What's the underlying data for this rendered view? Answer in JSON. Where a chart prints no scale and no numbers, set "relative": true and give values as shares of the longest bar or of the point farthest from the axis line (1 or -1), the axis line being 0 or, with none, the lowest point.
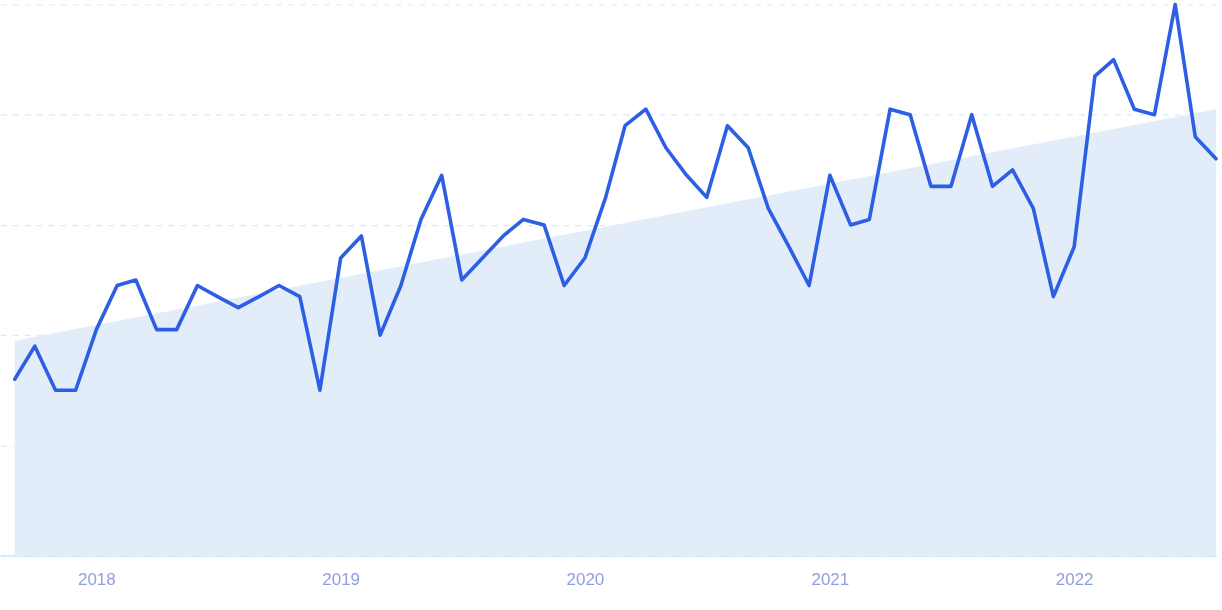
{
  "chart_data": {
    "type": "line",
    "relative": true,
    "grid": "y",
    "x": [
      "2017-09",
      "2017-10",
      "2017-11",
      "2017-12",
      "2018-01",
      "2018-02",
      "2018-03",
      "2018-04",
      "2018-05",
      "2018-06",
      "2018-07",
      "2018-08",
      "2018-09",
      "2018-10",
      "2018-11",
      "2018-12",
      "2019-01",
      "2019-02",
      "2019-03",
      "2019-04",
      "2019-05",
      "2019-06",
      "2019-07",
      "2019-08",
      "2019-09",
      "2019-10",
      "2019-11",
      "2019-12",
      "2020-01",
      "2020-02",
      "2020-03",
      "2020-04",
      "2020-05",
      "2020-06",
      "2020-07",
      "2020-08",
      "2020-09",
      "2020-10",
      "2020-11",
      "2020-12",
      "2021-01",
      "2021-02",
      "2021-03",
      "2021-04",
      "2021-05",
      "2021-06",
      "2021-07",
      "2021-08",
      "2021-09",
      "2021-10",
      "2021-11",
      "2021-12",
      "2022-01",
      "2022-02",
      "2022-03",
      "2022-04",
      "2022-05",
      "2022-06",
      "2022-07",
      "2022-08"
    ],
    "xlim": [
      "2017-08-10",
      "2022-08"
    ],
    "xticks": [
      "2018",
      "2019",
      "2020",
      "2021",
      "2022"
    ],
    "series": [
      {
        "type": "area",
        "color": "#e3edfa",
        "x": [
          "2017-09",
          "2022-08"
        ],
        "values": [
          0.39,
          0.81
        ]
      },
      {
        "color": "#2d5fe4",
        "values": [
          0.32,
          0.38,
          0.3,
          0.3,
          0.41,
          0.49,
          0.5,
          0.41,
          0.41,
          0.49,
          0.47,
          0.45,
          0.47,
          0.49,
          0.47,
          0.3,
          0.54,
          0.58,
          0.4,
          0.49,
          0.61,
          0.69,
          0.5,
          0.54,
          0.58,
          0.61,
          0.6,
          0.49,
          0.54,
          0.65,
          0.78,
          0.81,
          0.74,
          0.69,
          0.65,
          0.78,
          0.74,
          0.63,
          0.56,
          0.49,
          0.69,
          0.6,
          0.61,
          0.81,
          0.8,
          0.67,
          0.67,
          0.8,
          0.67,
          0.7,
          0.63,
          0.47,
          0.56,
          0.87,
          0.9,
          0.81,
          0.8,
          1,
          0.76,
          0.72
        ]
      }
    ]
  }
}
